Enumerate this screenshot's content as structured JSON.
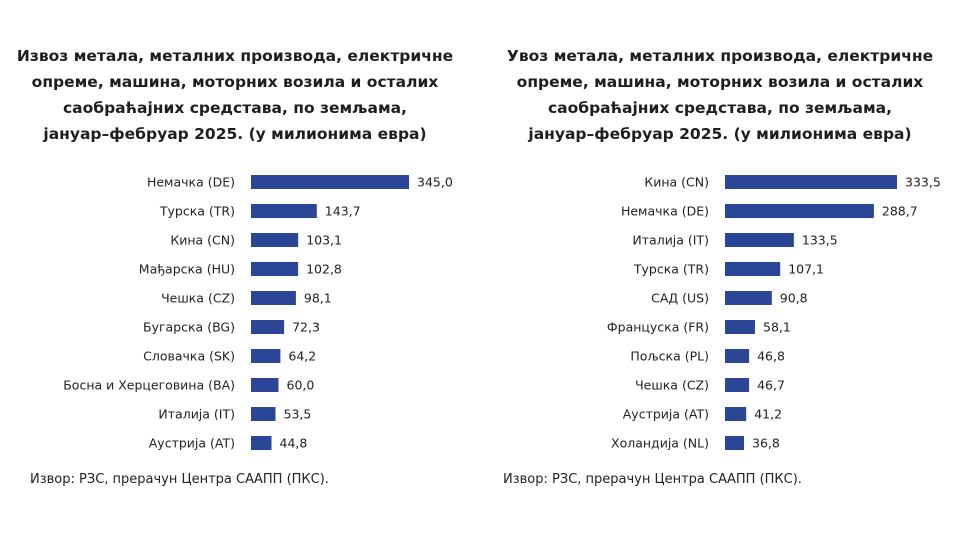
{
  "colors": {
    "bar": "#2b4597",
    "text": "#222222"
  },
  "charts": {
    "export": {
      "title": "Извоз метала, металних производа, електричне\nопреме, машина, моторних возила и осталих\nсаобраћајних средстава, по земљама,\nјануар–фебруар 2025. (у милионима евра)",
      "source": "Извор: РЗС, прерачун Центра СААПП (ПКС)."
    },
    "import": {
      "title": "Увоз метала, металних производа, електричне\nопреме, машина, моторних возила и осталих\nсаобраћајних средстава, по земљама,\nјануар–фебруар 2025. (у милионима евра)",
      "source": "Извор: РЗС, прерачун Центра СААПП (ПКС)."
    }
  },
  "chart_data": [
    {
      "type": "bar",
      "orientation": "horizontal",
      "title": "Извоз метала, металних производа, електричне опреме, машина, моторних возила и осталих саобраћајних средстава, по земљама, јануар–фебруар 2025. (у милионима евра)",
      "categories": [
        "Немачка (DE)",
        "Турска (TR)",
        "Кина (CN)",
        "Мађарска (HU)",
        "Чешка (CZ)",
        "Бугарска (BG)",
        "Словачка (SK)",
        "Босна и Херцеговина (BA)",
        "Италија (IT)",
        "Аустрија (AT)"
      ],
      "values": [
        345.0,
        143.7,
        103.1,
        102.8,
        98.1,
        72.3,
        64.2,
        60.0,
        53.5,
        44.8
      ],
      "value_labels": [
        "345,0",
        "143,7",
        "103,1",
        "102,8",
        "98,1",
        "72,3",
        "64,2",
        "60,0",
        "53,5",
        "44,8"
      ],
      "xlim": [
        0,
        345.0
      ],
      "grid": false,
      "legend": "none"
    },
    {
      "type": "bar",
      "orientation": "horizontal",
      "title": "Увоз метала, металних производа, електричне опреме, машина, моторних возила и осталих саобраћајних средстава, по земљама, јануар–фебруар 2025. (у милионима евра)",
      "categories": [
        "Кина (CN)",
        "Немачка (DE)",
        "Италија (IT)",
        "Турска (TR)",
        "САД (US)",
        "Француска (FR)",
        "Пољска (PL)",
        "Чешка (CZ)",
        "Аустрија (AT)",
        "Холандија (NL)"
      ],
      "values": [
        333.5,
        288.7,
        133.5,
        107.1,
        90.8,
        58.1,
        46.8,
        46.7,
        41.2,
        36.8
      ],
      "value_labels": [
        "333,5",
        "288,7",
        "133,5",
        "107,1",
        "90,8",
        "58,1",
        "46,8",
        "46,7",
        "41,2",
        "36,8"
      ],
      "xlim": [
        0,
        333.5
      ],
      "grid": false,
      "legend": "none"
    }
  ]
}
